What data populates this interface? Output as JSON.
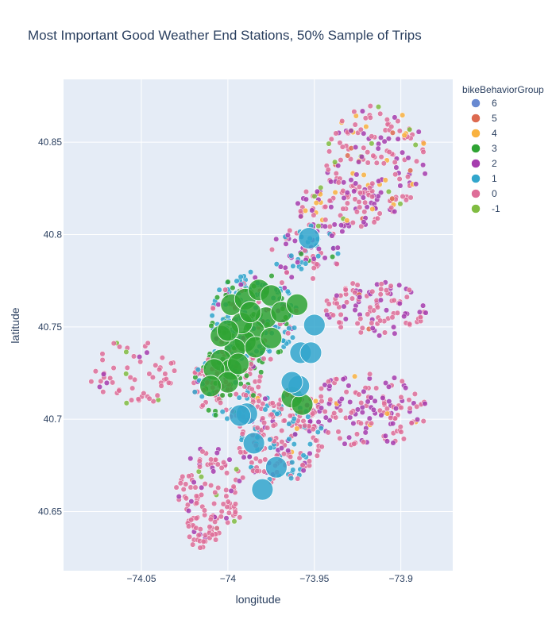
{
  "chart_data": {
    "type": "scatter",
    "title": "Most Important Good Weather End Stations, 50% Sample of Trips",
    "xlabel": "longitude",
    "ylabel": "latitude",
    "xlim": [
      -74.095,
      -73.87
    ],
    "ylim": [
      40.618,
      40.884
    ],
    "xticks": [
      {
        "value": -74.05,
        "label": "−74.05"
      },
      {
        "value": -74.0,
        "label": "−74"
      },
      {
        "value": -73.95,
        "label": "−73.95"
      },
      {
        "value": -73.9,
        "label": "−73.9"
      }
    ],
    "yticks": [
      {
        "value": 40.65,
        "label": "40.65"
      },
      {
        "value": 40.7,
        "label": "40.7"
      },
      {
        "value": 40.75,
        "label": "40.75"
      },
      {
        "value": 40.8,
        "label": "40.8"
      },
      {
        "value": 40.85,
        "label": "40.85"
      }
    ],
    "grid": true,
    "legend": {
      "title": "bikeBehaviorGroup",
      "placement": "top-right",
      "entries": [
        {
          "label": "6",
          "color": "#6889d1"
        },
        {
          "label": "5",
          "color": "#dd6a50"
        },
        {
          "label": "4",
          "color": "#f9b23f"
        },
        {
          "label": "3",
          "color": "#2fa333"
        },
        {
          "label": "2",
          "color": "#a63dae"
        },
        {
          "label": "1",
          "color": "#32a6cc"
        },
        {
          "label": "0",
          "color": "#de6d98"
        },
        {
          "label": "-1",
          "color": "#80bc41"
        }
      ]
    },
    "series": [
      {
        "name": "3",
        "color": "#2fa333",
        "points": [
          [
            -73.998,
            40.762,
            3
          ],
          [
            -73.99,
            40.765,
            3
          ],
          [
            -73.982,
            40.77,
            3
          ],
          [
            -73.975,
            40.767,
            3
          ],
          [
            -73.978,
            40.755,
            3
          ],
          [
            -73.985,
            40.748,
            3
          ],
          [
            -73.99,
            40.742,
            3
          ],
          [
            -73.996,
            40.738,
            3
          ],
          [
            -74.004,
            40.732,
            3
          ],
          [
            -73.998,
            40.727,
            3
          ],
          [
            -74.008,
            40.727,
            3
          ],
          [
            -74.0,
            40.72,
            3
          ],
          [
            -74.01,
            40.718,
            3
          ],
          [
            -73.984,
            40.739,
            3
          ],
          [
            -73.975,
            40.744,
            3
          ],
          [
            -73.992,
            40.752,
            3
          ],
          [
            -73.987,
            40.758,
            3
          ],
          [
            -74.004,
            40.745,
            3
          ],
          [
            -73.969,
            40.758,
            3
          ],
          [
            -73.96,
            40.762,
            3
          ],
          [
            -73.963,
            40.712,
            3
          ],
          [
            -73.957,
            40.708,
            3
          ],
          [
            -73.994,
            40.73,
            3
          ],
          [
            -74.0,
            40.748,
            3
          ]
        ]
      },
      {
        "name": "1",
        "color": "#32a6cc",
        "points": [
          [
            -73.953,
            40.798,
            3
          ],
          [
            -73.95,
            40.751,
            3
          ],
          [
            -73.958,
            40.736,
            3
          ],
          [
            -73.952,
            40.736,
            3
          ],
          [
            -73.959,
            40.718,
            3
          ],
          [
            -73.989,
            40.703,
            3
          ],
          [
            -73.993,
            40.702,
            3
          ],
          [
            -73.972,
            40.674,
            3
          ],
          [
            -73.98,
            40.662,
            3
          ],
          [
            -73.985,
            40.687,
            3
          ],
          [
            -73.963,
            40.72,
            3
          ]
        ]
      }
    ]
  }
}
